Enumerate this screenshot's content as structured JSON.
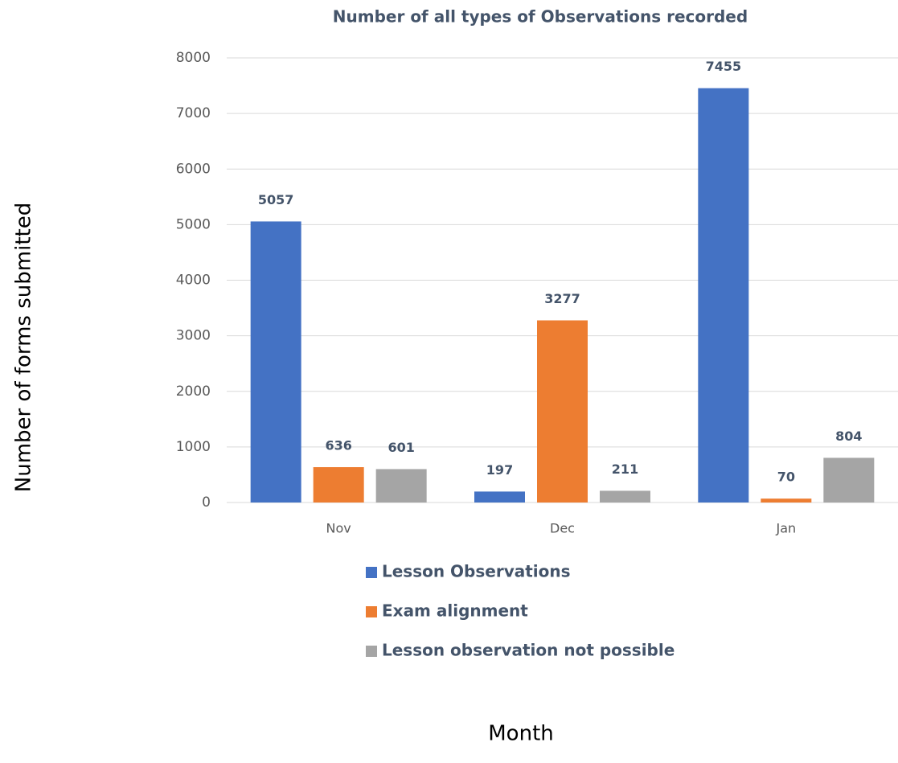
{
  "chart_data": {
    "type": "bar",
    "title": "Number of all types of Observations recorded",
    "x_label": "Month",
    "y_label": "Number of forms submitted",
    "categories": [
      "Nov",
      "Dec",
      "Jan"
    ],
    "series": [
      {
        "name": "Lesson Observations",
        "color": "#4472c4",
        "values": [
          5057,
          197,
          7455
        ]
      },
      {
        "name": "Exam alignment",
        "color": "#ed7d31",
        "values": [
          636,
          3277,
          70
        ]
      },
      {
        "name": "Lesson observation not possible",
        "color": "#a5a5a5",
        "values": [
          601,
          211,
          804
        ]
      }
    ],
    "ylim": [
      0,
      8000
    ],
    "yticks": [
      0,
      1000,
      2000,
      3000,
      4000,
      5000,
      6000,
      7000,
      8000
    ],
    "grid": true,
    "legend": "bottom"
  }
}
